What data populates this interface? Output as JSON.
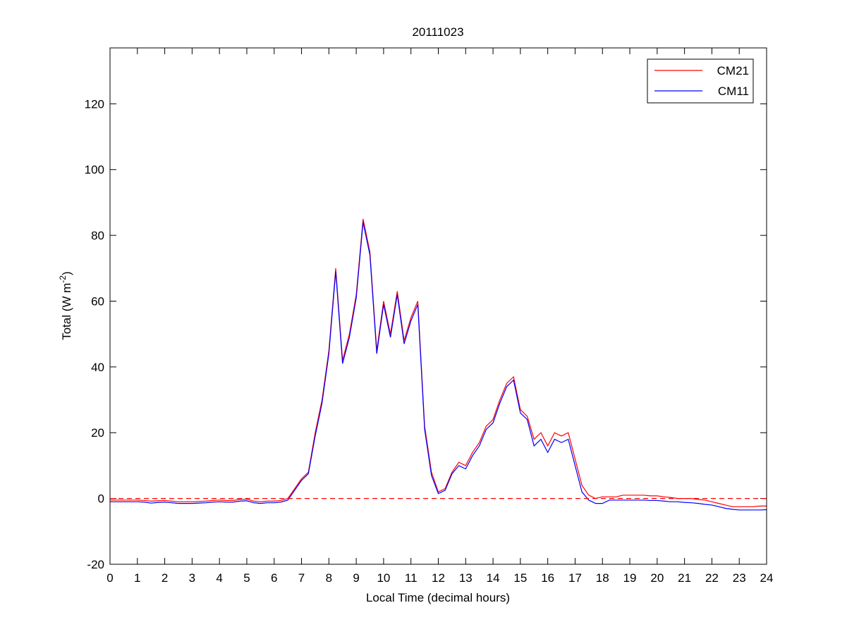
{
  "chart_data": {
    "type": "line",
    "title": "20111023",
    "xlabel": "Local Time (decimal hours)",
    "ylabel": {
      "text": "Total (W m",
      "superscript": "-2",
      "suffix": ")"
    },
    "x": [
      0,
      0.25,
      0.5,
      0.75,
      1,
      1.25,
      1.5,
      1.75,
      2,
      2.25,
      2.5,
      2.75,
      3,
      3.25,
      3.5,
      3.75,
      4,
      4.25,
      4.5,
      4.75,
      5,
      5.25,
      5.5,
      5.75,
      6,
      6.25,
      6.5,
      6.75,
      7,
      7.25,
      7.5,
      7.75,
      8,
      8.25,
      8.5,
      8.75,
      9,
      9.25,
      9.5,
      9.75,
      10,
      10.25,
      10.5,
      10.75,
      11,
      11.25,
      11.5,
      11.75,
      12,
      12.25,
      12.5,
      12.75,
      13,
      13.25,
      13.5,
      13.75,
      14,
      14.25,
      14.5,
      14.75,
      15,
      15.25,
      15.5,
      15.75,
      16,
      16.25,
      16.5,
      16.75,
      17,
      17.25,
      17.5,
      17.75,
      18,
      18.25,
      18.5,
      18.75,
      19,
      19.25,
      19.5,
      19.75,
      20,
      20.25,
      20.5,
      20.75,
      21,
      21.25,
      21.5,
      21.75,
      22,
      22.25,
      22.5,
      22.75,
      23,
      23.25,
      23.5,
      23.75,
      24
    ],
    "series": [
      {
        "name": "CM21",
        "color": "#ff0000",
        "values": [
          -0.5,
          -0.5,
          -0.5,
          -0.5,
          -0.5,
          -0.6,
          -0.8,
          -0.7,
          -0.6,
          -0.8,
          -1,
          -1,
          -1,
          -0.9,
          -0.8,
          -0.6,
          -0.5,
          -0.6,
          -0.6,
          -0.3,
          -0.2,
          -0.8,
          -1,
          -0.8,
          -0.8,
          -0.6,
          0,
          3,
          6,
          8,
          20,
          30,
          45,
          70,
          42,
          50,
          62,
          85,
          75,
          45,
          60,
          50,
          63,
          48,
          55,
          60,
          22,
          8,
          2,
          3,
          8,
          11,
          10,
          14,
          17,
          22,
          24,
          30,
          35,
          37,
          27,
          25,
          18,
          20,
          16,
          20,
          19,
          20,
          12,
          4,
          1,
          0,
          0.5,
          0.5,
          0.5,
          1,
          1,
          1,
          1,
          0.8,
          0.8,
          0.5,
          0.3,
          0,
          0,
          0,
          -0.3,
          -0.5,
          -1,
          -1.5,
          -2,
          -2.5,
          -2.5,
          -2.5,
          -2.5,
          -2.3,
          -2.3
        ]
      },
      {
        "name": "CM11",
        "color": "#0000ff",
        "values": [
          -1,
          -1,
          -1,
          -1,
          -1,
          -1.1,
          -1.4,
          -1.2,
          -1.1,
          -1.3,
          -1.5,
          -1.5,
          -1.5,
          -1.4,
          -1.3,
          -1.1,
          -1,
          -1.1,
          -1.1,
          -0.8,
          -0.7,
          -1.3,
          -1.5,
          -1.3,
          -1.3,
          -1.1,
          -0.5,
          2.5,
          5.5,
          7.5,
          19,
          29,
          44,
          69,
          41,
          49,
          61,
          84,
          74,
          44,
          59,
          49,
          62,
          47,
          54,
          59,
          21,
          7,
          1.5,
          2.5,
          7.5,
          10,
          9,
          13,
          16,
          21,
          23,
          29,
          34,
          36,
          26,
          24,
          16,
          18,
          14,
          18,
          17,
          18,
          10,
          2,
          -0.5,
          -1.5,
          -1.5,
          -0.5,
          -0.5,
          -0.5,
          -0.5,
          -0.5,
          -0.5,
          -0.6,
          -0.6,
          -0.8,
          -1,
          -1,
          -1.2,
          -1.3,
          -1.5,
          -1.8,
          -2,
          -2.5,
          -3,
          -3.3,
          -3.5,
          -3.5,
          -3.5,
          -3.5,
          -3.4
        ]
      }
    ],
    "xlim": [
      0,
      24
    ],
    "xticks": [
      0,
      1,
      2,
      3,
      4,
      5,
      6,
      7,
      8,
      9,
      10,
      11,
      12,
      13,
      14,
      15,
      16,
      17,
      18,
      19,
      20,
      21,
      22,
      23,
      24
    ],
    "ylim": [
      -20,
      137
    ],
    "yticks": [
      -20,
      0,
      20,
      40,
      60,
      80,
      100,
      120
    ],
    "reference_line": {
      "y": 0,
      "color": "#ff0000",
      "style": "dashed"
    },
    "legend": "upper right",
    "grid": false
  }
}
